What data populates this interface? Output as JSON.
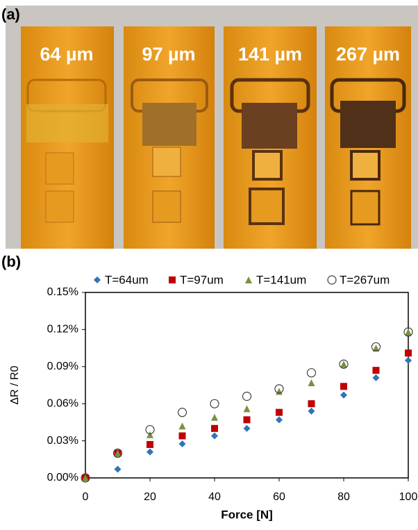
{
  "panel_labels": [
    "(a)",
    "(b)"
  ],
  "photo": {
    "labels": [
      "64 µm",
      "97 µm",
      "141 µm",
      "267 µm"
    ]
  },
  "chart_data": {
    "type": "scatter",
    "x_label": "Force [N]",
    "y_label": "ΔR / R0",
    "x": [
      0,
      10,
      20,
      30,
      40,
      50,
      60,
      70,
      80,
      90,
      100
    ],
    "series": [
      {
        "name": "T=64um",
        "color": "#2e75b6",
        "marker": "diamond",
        "values": [
          0,
          0.007,
          0.021,
          0.0275,
          0.034,
          0.04,
          0.047,
          0.054,
          0.067,
          0.081,
          0.095
        ]
      },
      {
        "name": "T=97um",
        "color": "#c00000",
        "marker": "square",
        "values": [
          0,
          0.02,
          0.027,
          0.034,
          0.04,
          0.047,
          0.053,
          0.06,
          0.074,
          0.087,
          0.101
        ]
      },
      {
        "name": "T=141um",
        "color": "#77933c",
        "marker": "triangle",
        "values": [
          0,
          0.02,
          0.035,
          0.042,
          0.049,
          0.056,
          0.07,
          0.077,
          0.092,
          0.105,
          0.118
        ]
      },
      {
        "name": "T=267um",
        "color": "#404040",
        "marker": "open-circle",
        "values": [
          0,
          0.02,
          0.039,
          0.053,
          0.06,
          0.066,
          0.072,
          0.085,
          0.092,
          0.106,
          0.118
        ]
      }
    ],
    "xlim": [
      0,
      100
    ],
    "xticks": [
      0,
      20,
      40,
      60,
      80,
      100
    ],
    "ylim": [
      0,
      0.15
    ],
    "yticks": [
      {
        "value": 0,
        "label": "0.00%"
      },
      {
        "value": 0.03,
        "label": "0.03%"
      },
      {
        "value": 0.06,
        "label": "0.06%"
      },
      {
        "value": 0.09,
        "label": "0.09%"
      },
      {
        "value": 0.12,
        "label": "0.12%"
      },
      {
        "value": 0.15,
        "label": "0.15%"
      }
    ]
  }
}
